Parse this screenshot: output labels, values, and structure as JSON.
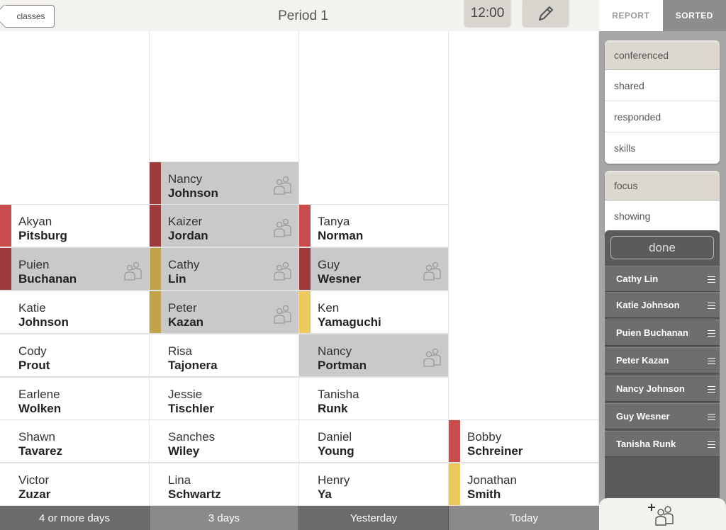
{
  "header": {
    "back_label": "classes",
    "title": "Period 1",
    "time": "12:00"
  },
  "columns": [
    {
      "label": "4 or more days",
      "footer_color": "#6b6b6b",
      "cards": [
        {
          "first": "Akyan",
          "last": "Pitsburg",
          "color": "#c94c4c",
          "selected": false,
          "conferenced": false
        },
        {
          "first": "Puien",
          "last": "Buchanan",
          "color": "#a0393c",
          "selected": true,
          "conferenced": true
        },
        {
          "first": "Katie",
          "last": "Johnson",
          "color": "",
          "selected": false,
          "conferenced": false
        },
        {
          "first": "Cody",
          "last": "Prout",
          "color": "",
          "selected": false,
          "conferenced": false
        },
        {
          "first": "Earlene",
          "last": "Wolken",
          "color": "",
          "selected": false,
          "conferenced": false
        },
        {
          "first": "Shawn",
          "last": "Tavarez",
          "color": "",
          "selected": false,
          "conferenced": false
        },
        {
          "first": "Victor",
          "last": "Zuzar",
          "color": "",
          "selected": false,
          "conferenced": false
        }
      ]
    },
    {
      "label": "3 days",
      "footer_color": "#8a8a8a",
      "cards": [
        {
          "first": "Nancy",
          "last": "Johnson",
          "color": "#a0393c",
          "selected": true,
          "conferenced": true
        },
        {
          "first": "Kaizer",
          "last": "Jordan",
          "color": "#a0393c",
          "selected": true,
          "conferenced": true
        },
        {
          "first": "Cathy",
          "last": "Lin",
          "color": "#c2a34a",
          "selected": true,
          "conferenced": true
        },
        {
          "first": "Peter",
          "last": "Kazan",
          "color": "#c2a34a",
          "selected": true,
          "conferenced": true
        },
        {
          "first": "Risa",
          "last": "Tajonera",
          "color": "",
          "selected": false,
          "conferenced": false
        },
        {
          "first": "Jessie",
          "last": "Tischler",
          "color": "",
          "selected": false,
          "conferenced": false
        },
        {
          "first": "Sanches",
          "last": "Wiley",
          "color": "",
          "selected": false,
          "conferenced": false
        },
        {
          "first": "Lina",
          "last": "Schwartz",
          "color": "",
          "selected": false,
          "conferenced": false
        }
      ]
    },
    {
      "label": "Yesterday",
      "footer_color": "#6b6b6b",
      "cards": [
        {
          "first": "Tanya",
          "last": "Norman",
          "color": "#c94c4c",
          "selected": false,
          "conferenced": false
        },
        {
          "first": "Guy",
          "last": "Wesner",
          "color": "#a0393c",
          "selected": true,
          "conferenced": true
        },
        {
          "first": "Ken",
          "last": "Yamaguchi",
          "color": "#ecc95a",
          "selected": false,
          "conferenced": false
        },
        {
          "first": "Nancy",
          "last": "Portman",
          "color": "",
          "selected": true,
          "conferenced": true
        },
        {
          "first": "Tanisha",
          "last": "Runk",
          "color": "",
          "selected": false,
          "conferenced": false
        },
        {
          "first": "Daniel",
          "last": "Young",
          "color": "",
          "selected": false,
          "conferenced": false
        },
        {
          "first": "Henry",
          "last": "Ya",
          "color": "",
          "selected": false,
          "conferenced": false
        }
      ]
    },
    {
      "label": "Today",
      "footer_color": "#8a8a8a",
      "cards": [
        {
          "first": "Bobby",
          "last": "Schreiner",
          "color": "#c94c4c",
          "selected": false,
          "conferenced": false
        },
        {
          "first": "Jonathan",
          "last": "Smith",
          "color": "#ecc95a",
          "selected": false,
          "conferenced": false
        }
      ]
    }
  ],
  "sidebar": {
    "tabs": {
      "report": "REPORT",
      "sorted": "SORTED"
    },
    "panel1": {
      "header": "conferenced",
      "items": [
        "shared",
        "responded",
        "skills"
      ]
    },
    "panel2": {
      "header": "focus",
      "items": [
        "showing"
      ]
    },
    "done_label": "done",
    "focus_list": [
      "Cathy Lin",
      "Katie Johnson",
      "Puien Buchanan",
      "Peter Kazan",
      "Nancy Johnson",
      "Guy Wesner",
      "Tanisha Runk"
    ],
    "add_icon": "add-student-icon"
  }
}
